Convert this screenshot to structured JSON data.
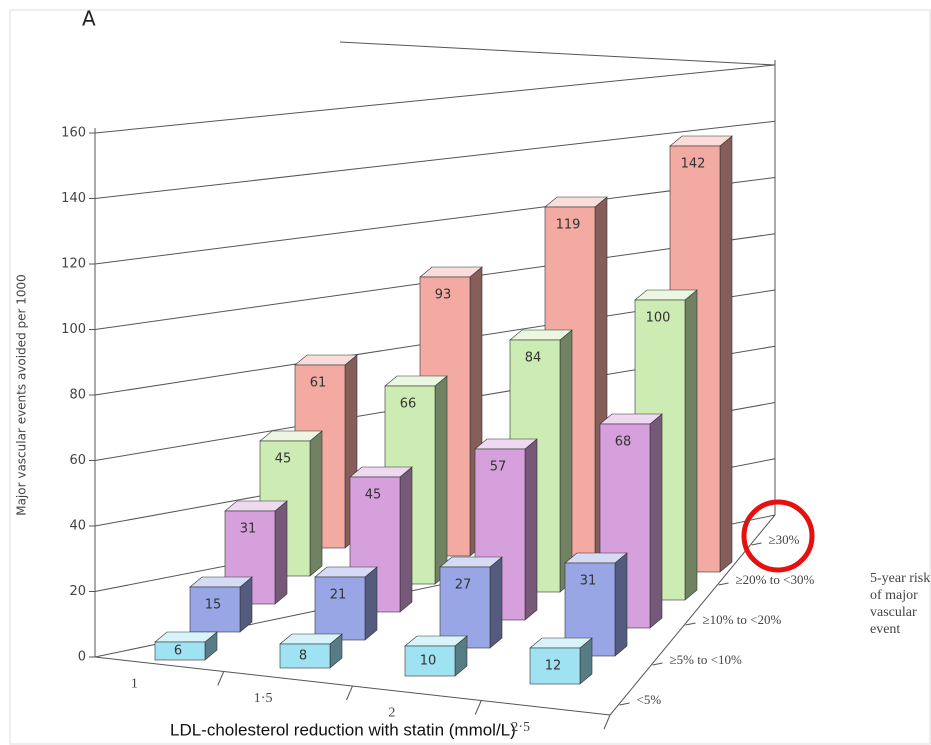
{
  "chart_data": {
    "type": "bar3d",
    "title": "A",
    "y_label": "Major vascular events avoided per 1000",
    "x_label": "LDL-cholesterol reduction with statin (mmol/L)",
    "depth_label": "5-year risk of major vascular event",
    "categories": [
      "1",
      "1·5",
      "2",
      "2·5"
    ],
    "series": [
      {
        "name": "<5%",
        "color": "#9fe2f2",
        "values": [
          6,
          8,
          10,
          12
        ]
      },
      {
        "name": "≥5% to <10%",
        "color": "#98a6e6",
        "values": [
          15,
          21,
          27,
          31
        ]
      },
      {
        "name": "≥10% to <20%",
        "color": "#d6a0dc",
        "values": [
          31,
          45,
          57,
          68
        ]
      },
      {
        "name": "≥20% to <30%",
        "color": "#cdecb4",
        "values": [
          45,
          66,
          84,
          100
        ]
      },
      {
        "name": "≥30%",
        "color": "#f2aaa2",
        "values": [
          61,
          93,
          119,
          142
        ]
      }
    ],
    "ylim": [
      0,
      160
    ],
    "yticks": [
      0,
      20,
      40,
      60,
      80,
      100,
      120,
      140,
      160
    ],
    "grid": true
  }
}
